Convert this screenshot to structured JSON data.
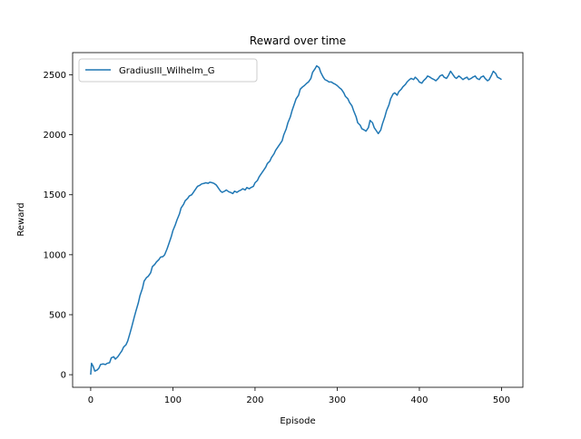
{
  "chart_data": {
    "type": "line",
    "title": "Reward over time",
    "xlabel": "Episode",
    "ylabel": "Reward",
    "xlim": [
      -22,
      526
    ],
    "ylim": [
      -105,
      2685
    ],
    "x_ticks": [
      0,
      100,
      200,
      300,
      400,
      500
    ],
    "y_ticks": [
      0,
      500,
      1000,
      1500,
      2000,
      2500
    ],
    "grid": false,
    "legend_position": "top-left",
    "series": [
      {
        "name": "GradiusIII_Wilhelm_G",
        "color": "#1f77b4",
        "points": [
          [
            0,
            0
          ],
          [
            1,
            95
          ],
          [
            3,
            70
          ],
          [
            5,
            30
          ],
          [
            8,
            40
          ],
          [
            10,
            55
          ],
          [
            12,
            85
          ],
          [
            15,
            90
          ],
          [
            18,
            85
          ],
          [
            20,
            95
          ],
          [
            23,
            100
          ],
          [
            25,
            140
          ],
          [
            28,
            150
          ],
          [
            30,
            130
          ],
          [
            33,
            150
          ],
          [
            35,
            170
          ],
          [
            38,
            200
          ],
          [
            40,
            230
          ],
          [
            43,
            250
          ],
          [
            45,
            280
          ],
          [
            48,
            350
          ],
          [
            50,
            400
          ],
          [
            53,
            480
          ],
          [
            55,
            530
          ],
          [
            58,
            600
          ],
          [
            60,
            660
          ],
          [
            63,
            720
          ],
          [
            65,
            780
          ],
          [
            68,
            810
          ],
          [
            70,
            820
          ],
          [
            73,
            850
          ],
          [
            75,
            900
          ],
          [
            78,
            920
          ],
          [
            80,
            940
          ],
          [
            83,
            960
          ],
          [
            85,
            980
          ],
          [
            88,
            985
          ],
          [
            90,
            1000
          ],
          [
            93,
            1050
          ],
          [
            95,
            1090
          ],
          [
            98,
            1150
          ],
          [
            100,
            1200
          ],
          [
            103,
            1250
          ],
          [
            105,
            1290
          ],
          [
            108,
            1340
          ],
          [
            110,
            1390
          ],
          [
            113,
            1420
          ],
          [
            115,
            1450
          ],
          [
            118,
            1470
          ],
          [
            120,
            1490
          ],
          [
            123,
            1500
          ],
          [
            125,
            1520
          ],
          [
            128,
            1550
          ],
          [
            130,
            1570
          ],
          [
            133,
            1580
          ],
          [
            135,
            1590
          ],
          [
            138,
            1595
          ],
          [
            140,
            1600
          ],
          [
            143,
            1595
          ],
          [
            145,
            1605
          ],
          [
            148,
            1600
          ],
          [
            150,
            1595
          ],
          [
            153,
            1580
          ],
          [
            155,
            1560
          ],
          [
            158,
            1530
          ],
          [
            160,
            1520
          ],
          [
            163,
            1530
          ],
          [
            165,
            1540
          ],
          [
            168,
            1525
          ],
          [
            170,
            1520
          ],
          [
            173,
            1510
          ],
          [
            175,
            1530
          ],
          [
            178,
            1520
          ],
          [
            180,
            1530
          ],
          [
            183,
            1540
          ],
          [
            185,
            1550
          ],
          [
            188,
            1540
          ],
          [
            190,
            1560
          ],
          [
            193,
            1550
          ],
          [
            195,
            1560
          ],
          [
            198,
            1570
          ],
          [
            200,
            1600
          ],
          [
            203,
            1620
          ],
          [
            205,
            1650
          ],
          [
            208,
            1680
          ],
          [
            210,
            1700
          ],
          [
            213,
            1730
          ],
          [
            215,
            1760
          ],
          [
            218,
            1780
          ],
          [
            220,
            1810
          ],
          [
            223,
            1840
          ],
          [
            225,
            1870
          ],
          [
            228,
            1900
          ],
          [
            230,
            1920
          ],
          [
            233,
            1950
          ],
          [
            235,
            2000
          ],
          [
            238,
            2050
          ],
          [
            240,
            2100
          ],
          [
            243,
            2150
          ],
          [
            245,
            2200
          ],
          [
            248,
            2260
          ],
          [
            250,
            2300
          ],
          [
            253,
            2330
          ],
          [
            255,
            2380
          ],
          [
            258,
            2400
          ],
          [
            260,
            2410
          ],
          [
            263,
            2430
          ],
          [
            265,
            2440
          ],
          [
            268,
            2470
          ],
          [
            270,
            2520
          ],
          [
            273,
            2550
          ],
          [
            275,
            2575
          ],
          [
            278,
            2560
          ],
          [
            280,
            2520
          ],
          [
            283,
            2480
          ],
          [
            285,
            2460
          ],
          [
            288,
            2450
          ],
          [
            290,
            2440
          ],
          [
            293,
            2440
          ],
          [
            295,
            2430
          ],
          [
            298,
            2420
          ],
          [
            300,
            2410
          ],
          [
            303,
            2390
          ],
          [
            305,
            2380
          ],
          [
            308,
            2350
          ],
          [
            310,
            2320
          ],
          [
            313,
            2300
          ],
          [
            315,
            2270
          ],
          [
            318,
            2240
          ],
          [
            320,
            2200
          ],
          [
            323,
            2150
          ],
          [
            325,
            2100
          ],
          [
            328,
            2080
          ],
          [
            330,
            2050
          ],
          [
            333,
            2040
          ],
          [
            335,
            2030
          ],
          [
            338,
            2060
          ],
          [
            340,
            2120
          ],
          [
            343,
            2100
          ],
          [
            345,
            2060
          ],
          [
            348,
            2030
          ],
          [
            350,
            2010
          ],
          [
            353,
            2040
          ],
          [
            355,
            2090
          ],
          [
            358,
            2150
          ],
          [
            360,
            2200
          ],
          [
            363,
            2250
          ],
          [
            365,
            2300
          ],
          [
            368,
            2340
          ],
          [
            370,
            2350
          ],
          [
            373,
            2330
          ],
          [
            375,
            2360
          ],
          [
            378,
            2380
          ],
          [
            380,
            2400
          ],
          [
            383,
            2420
          ],
          [
            385,
            2440
          ],
          [
            388,
            2460
          ],
          [
            390,
            2470
          ],
          [
            393,
            2460
          ],
          [
            395,
            2480
          ],
          [
            398,
            2460
          ],
          [
            400,
            2440
          ],
          [
            403,
            2430
          ],
          [
            405,
            2450
          ],
          [
            408,
            2470
          ],
          [
            410,
            2490
          ],
          [
            413,
            2480
          ],
          [
            415,
            2470
          ],
          [
            418,
            2460
          ],
          [
            420,
            2450
          ],
          [
            423,
            2470
          ],
          [
            425,
            2490
          ],
          [
            428,
            2500
          ],
          [
            430,
            2480
          ],
          [
            433,
            2470
          ],
          [
            435,
            2490
          ],
          [
            438,
            2530
          ],
          [
            440,
            2510
          ],
          [
            443,
            2480
          ],
          [
            445,
            2470
          ],
          [
            448,
            2490
          ],
          [
            450,
            2480
          ],
          [
            453,
            2460
          ],
          [
            455,
            2470
          ],
          [
            458,
            2480
          ],
          [
            460,
            2460
          ],
          [
            463,
            2470
          ],
          [
            465,
            2480
          ],
          [
            468,
            2490
          ],
          [
            470,
            2470
          ],
          [
            473,
            2460
          ],
          [
            475,
            2480
          ],
          [
            478,
            2490
          ],
          [
            480,
            2470
          ],
          [
            483,
            2450
          ],
          [
            485,
            2460
          ],
          [
            488,
            2500
          ],
          [
            490,
            2530
          ],
          [
            493,
            2510
          ],
          [
            495,
            2480
          ],
          [
            498,
            2470
          ],
          [
            500,
            2460
          ]
        ]
      }
    ]
  }
}
